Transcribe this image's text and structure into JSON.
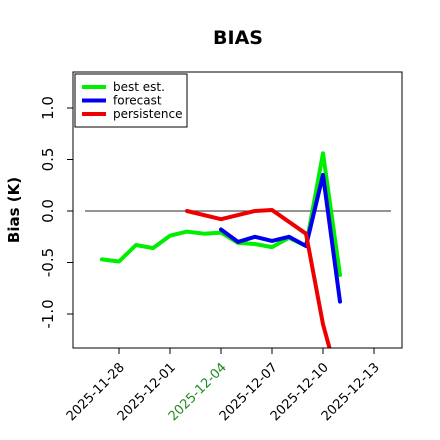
{
  "chart_data": {
    "type": "line",
    "title": "BIAS",
    "xlabel": "",
    "ylabel": "Bias (K)",
    "xlim": [
      "2025-11-25",
      "2025-12-13"
    ],
    "ylim": [
      -1.35,
      1.35
    ],
    "x_ticks": [
      "2025-11-28",
      "2025-12-01",
      "2025-12-04",
      "2025-12-07",
      "2025-12-10",
      "2025-12-13"
    ],
    "highlight_tick": "2025-12-04",
    "highlight_tick_color": "#228b22",
    "y_ticks": [
      -1.0,
      -0.5,
      0.0,
      0.5,
      1.0
    ],
    "y_tick_labels": [
      "-1.0",
      "-0.5",
      "0.0",
      "0.5",
      "1.0"
    ],
    "reference_line": {
      "y": 0,
      "from": "2025-11-26",
      "to": "2025-12-14",
      "color": "#555555"
    },
    "legend": {
      "position": "top-left"
    },
    "grid": false,
    "series": [
      {
        "name": "best est.",
        "color": "#00ee00",
        "points": [
          {
            "x": "2025-11-27",
            "y": -0.47
          },
          {
            "x": "2025-11-28",
            "y": -0.49
          },
          {
            "x": "2025-11-29",
            "y": -0.33
          },
          {
            "x": "2025-11-30",
            "y": -0.36
          },
          {
            "x": "2025-12-01",
            "y": -0.24
          },
          {
            "x": "2025-12-02",
            "y": -0.2
          },
          {
            "x": "2025-12-03",
            "y": -0.22
          },
          {
            "x": "2025-12-04",
            "y": -0.21
          },
          {
            "x": "2025-12-05",
            "y": -0.31
          },
          {
            "x": "2025-12-06",
            "y": -0.32
          },
          {
            "x": "2025-12-07",
            "y": -0.35
          },
          {
            "x": "2025-12-08",
            "y": -0.26
          },
          {
            "x": "2025-12-09",
            "y": -0.34
          },
          {
            "x": "2025-12-10",
            "y": 0.56
          },
          {
            "x": "2025-12-11",
            "y": -0.62
          }
        ]
      },
      {
        "name": "forecast",
        "color": "#0000ee",
        "points": [
          {
            "x": "2025-12-04",
            "y": -0.18
          },
          {
            "x": "2025-12-05",
            "y": -0.3
          },
          {
            "x": "2025-12-06",
            "y": -0.25
          },
          {
            "x": "2025-12-07",
            "y": -0.29
          },
          {
            "x": "2025-12-08",
            "y": -0.25
          },
          {
            "x": "2025-12-09",
            "y": -0.34
          },
          {
            "x": "2025-12-10",
            "y": 0.35
          },
          {
            "x": "2025-12-11",
            "y": -0.88
          }
        ]
      },
      {
        "name": "persistence",
        "color": "#ee0000",
        "points": [
          {
            "x": "2025-12-02",
            "y": 0.0
          },
          {
            "x": "2025-12-04",
            "y": -0.08
          },
          {
            "x": "2025-12-06",
            "y": 0.0
          },
          {
            "x": "2025-12-07",
            "y": 0.01
          },
          {
            "x": "2025-12-09",
            "y": -0.22
          },
          {
            "x": "2025-12-10",
            "y": -1.1
          },
          {
            "x": "2025-12-10.5",
            "y": -1.4
          }
        ]
      }
    ]
  }
}
